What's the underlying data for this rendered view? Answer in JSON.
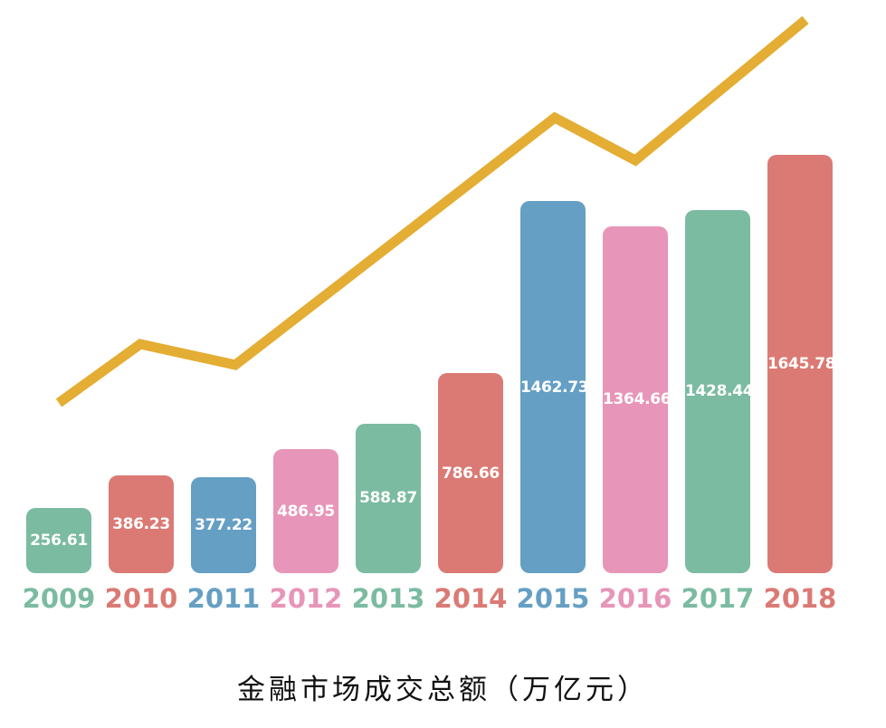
{
  "title": "金融市场成交总额（万亿元）",
  "colors": {
    "green": "#7bbba1",
    "red": "#db7a74",
    "blue": "#659fc4",
    "pink": "#e795b8",
    "line": "#e4ad33"
  },
  "bars": [
    {
      "year": "2009",
      "label": "256.61",
      "color": "#7bbba1"
    },
    {
      "year": "2010",
      "label": "386.23",
      "color": "#db7a74"
    },
    {
      "year": "2011",
      "label": "377.22",
      "color": "#659fc4"
    },
    {
      "year": "2012",
      "label": "486.95",
      "color": "#e795b8"
    },
    {
      "year": "2013",
      "label": "588.87",
      "color": "#7bbba1"
    },
    {
      "year": "2014",
      "label": "786.66",
      "color": "#db7a74"
    },
    {
      "year": "2015",
      "label": "1462.73",
      "color": "#659fc4"
    },
    {
      "year": "2016",
      "label": "1364.66",
      "color": "#e795b8"
    },
    {
      "year": "2017",
      "label": "1428.44",
      "color": "#7bbba1"
    },
    {
      "year": "2018",
      "label": "1645.78",
      "color": "#db7a74"
    }
  ],
  "chart_data": {
    "type": "bar",
    "title": "金融市场成交总额（万亿元）",
    "xlabel": "",
    "ylabel": "万亿元",
    "categories": [
      "2009",
      "2010",
      "2011",
      "2012",
      "2013",
      "2014",
      "2015",
      "2016",
      "2017",
      "2018"
    ],
    "values": [
      256.61,
      386.23,
      377.22,
      486.95,
      588.87,
      786.66,
      1462.73,
      1364.66,
      1428.44,
      1645.78
    ],
    "series": [
      {
        "name": "金融市场成交总额",
        "type": "bar",
        "values": [
          256.61,
          386.23,
          377.22,
          486.95,
          588.87,
          786.66,
          1462.73,
          1364.66,
          1428.44,
          1645.78
        ]
      },
      {
        "name": "趋势线",
        "type": "line",
        "values": [
          256.61,
          386.23,
          377.22,
          486.95,
          588.87,
          786.66,
          1462.73,
          1364.66,
          1428.44,
          1645.78
        ]
      }
    ],
    "data_labels": true,
    "grid": false,
    "legend": "none",
    "ylim": [
      0,
      1700
    ]
  }
}
